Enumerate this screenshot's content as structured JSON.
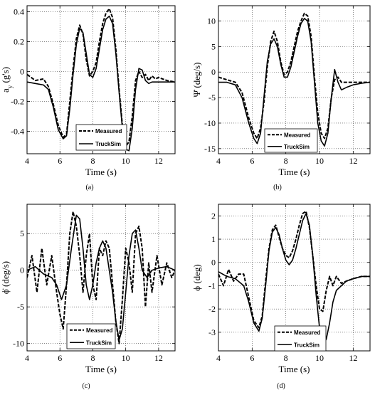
{
  "chart_data": [
    {
      "type": "line",
      "caption": "(a)",
      "ylabel_main": "a",
      "ylabel_sub": "y",
      "ylabel_rest": " (g's)",
      "xlabel": "Time (s)",
      "xlim": [
        4,
        13
      ],
      "ylim": [
        -0.55,
        0.44
      ],
      "xticks": [
        4,
        6,
        8,
        10,
        12
      ],
      "yticks": [
        -0.4,
        -0.2,
        0,
        0.2,
        0.4
      ],
      "ytick_labels": [
        "-0.4",
        "-0.2",
        "0",
        "0.2",
        "0.4"
      ],
      "grid": true,
      "legend": {
        "position": "bottom-center",
        "entries": [
          "Measured",
          "TruckSim"
        ]
      },
      "series": [
        {
          "name": "Measured",
          "style": "dashed",
          "x": [
            4,
            4.5,
            5,
            5.3,
            5.6,
            5.9,
            6.2,
            6.4,
            6.6,
            6.8,
            7.0,
            7.2,
            7.4,
            7.6,
            7.8,
            8.0,
            8.2,
            8.4,
            8.6,
            8.8,
            9.0,
            9.2,
            9.4,
            9.6,
            9.8,
            10.0,
            10.2,
            10.4,
            10.6,
            10.8,
            11.0,
            11.2,
            11.4,
            11.6,
            11.8,
            12.0,
            12.5,
            13
          ],
          "y": [
            -0.02,
            -0.06,
            -0.05,
            -0.1,
            -0.22,
            -0.36,
            -0.44,
            -0.42,
            -0.2,
            0.02,
            0.22,
            0.31,
            0.25,
            0.08,
            -0.03,
            0.0,
            0.06,
            0.2,
            0.32,
            0.39,
            0.42,
            0.36,
            0.15,
            -0.12,
            -0.36,
            -0.5,
            -0.47,
            -0.3,
            -0.06,
            0.0,
            -0.04,
            -0.02,
            -0.06,
            -0.03,
            -0.05,
            -0.04,
            -0.06,
            -0.07
          ]
        },
        {
          "name": "TruckSim",
          "style": "solid",
          "x": [
            4,
            4.5,
            5,
            5.3,
            5.6,
            5.9,
            6.2,
            6.4,
            6.6,
            6.8,
            7.0,
            7.2,
            7.4,
            7.6,
            7.8,
            8.0,
            8.2,
            8.4,
            8.6,
            8.8,
            9.0,
            9.2,
            9.4,
            9.6,
            9.8,
            10.0,
            10.2,
            10.4,
            10.6,
            10.8,
            11.0,
            11.2,
            11.4,
            11.6,
            11.8,
            12.0,
            12.5,
            13
          ],
          "y": [
            -0.07,
            -0.08,
            -0.09,
            -0.12,
            -0.24,
            -0.39,
            -0.45,
            -0.43,
            -0.25,
            -0.02,
            0.18,
            0.29,
            0.26,
            0.12,
            -0.02,
            -0.04,
            0.02,
            0.15,
            0.28,
            0.35,
            0.37,
            0.32,
            0.12,
            -0.14,
            -0.38,
            -0.52,
            -0.53,
            -0.38,
            -0.12,
            0.02,
            0.01,
            -0.06,
            -0.08,
            -0.07,
            -0.07,
            -0.07,
            -0.07,
            -0.07
          ]
        }
      ]
    },
    {
      "type": "line",
      "caption": "(b)",
      "ylabel_main": "Ψ̇",
      "ylabel_sub": "",
      "ylabel_rest": " (deg/s)",
      "xlabel": "Time (s)",
      "xlim": [
        4,
        13
      ],
      "ylim": [
        -16,
        13
      ],
      "xticks": [
        4,
        6,
        8,
        10,
        12
      ],
      "yticks": [
        -15,
        -10,
        -5,
        0,
        5,
        10
      ],
      "ytick_labels": [
        "-15",
        "-10",
        "-5",
        "0",
        "5",
        "10"
      ],
      "grid": true,
      "legend": {
        "position": "bottom-center",
        "entries": [
          "Measured",
          "TruckSim"
        ]
      },
      "series": [
        {
          "name": "Measured",
          "style": "dashed",
          "x": [
            4,
            4.5,
            5,
            5.4,
            5.8,
            6.1,
            6.3,
            6.5,
            6.7,
            6.9,
            7.1,
            7.3,
            7.5,
            7.7,
            7.9,
            8.1,
            8.3,
            8.5,
            8.7,
            8.9,
            9.1,
            9.3,
            9.5,
            9.7,
            9.9,
            10.1,
            10.3,
            10.5,
            10.7,
            10.9,
            11.1,
            11.3,
            11.6,
            12,
            12.5,
            13
          ],
          "y": [
            -1,
            -1.5,
            -2,
            -4,
            -9,
            -12,
            -13,
            -11,
            -6,
            1,
            6,
            8,
            6,
            2,
            -0.5,
            0,
            2,
            5,
            8,
            10,
            11.5,
            11,
            7,
            -1,
            -8,
            -12,
            -13,
            -11,
            -5,
            -1.5,
            -1,
            -2,
            -2,
            -2,
            -2,
            -2
          ]
        },
        {
          "name": "TruckSim",
          "style": "solid",
          "x": [
            4,
            4.5,
            5,
            5.4,
            5.8,
            6.1,
            6.3,
            6.5,
            6.7,
            6.9,
            7.1,
            7.3,
            7.5,
            7.7,
            7.9,
            8.1,
            8.3,
            8.5,
            8.7,
            8.9,
            9.1,
            9.3,
            9.5,
            9.7,
            9.9,
            10.1,
            10.3,
            10.5,
            10.7,
            10.9,
            11.1,
            11.3,
            11.6,
            12,
            12.5,
            13
          ],
          "y": [
            -2,
            -2,
            -2.5,
            -5,
            -10,
            -13,
            -14,
            -12,
            -5,
            2,
            5.5,
            6.5,
            5,
            1.5,
            -1,
            -1,
            1,
            4,
            7,
            9.5,
            10.5,
            10,
            6,
            -2,
            -10,
            -13.5,
            -14.5,
            -12,
            -5,
            0.5,
            -2,
            -3.5,
            -3,
            -2.5,
            -2.2,
            -2
          ]
        }
      ]
    },
    {
      "type": "line",
      "caption": "(c)",
      "ylabel_main": "ϕ̇",
      "ylabel_sub": "",
      "ylabel_rest": " (deg/s)",
      "xlabel": "Time (s)",
      "xlim": [
        4,
        13
      ],
      "ylim": [
        -11,
        9
      ],
      "xticks": [
        4,
        6,
        8,
        10,
        12
      ],
      "yticks": [
        -10,
        -5,
        0,
        5
      ],
      "ytick_labels": [
        "-10",
        "-5",
        "0",
        "5"
      ],
      "grid": true,
      "legend": {
        "position": "bottom-center",
        "entries": [
          "Measured",
          "TruckSim"
        ]
      },
      "series": [
        {
          "name": "Measured",
          "style": "dashed",
          "x": [
            4,
            4.3,
            4.6,
            4.9,
            5.2,
            5.5,
            5.8,
            6.0,
            6.2,
            6.4,
            6.6,
            6.8,
            7.0,
            7.2,
            7.4,
            7.6,
            7.8,
            8.0,
            8.2,
            8.4,
            8.6,
            8.8,
            9.0,
            9.2,
            9.4,
            9.6,
            9.8,
            10.0,
            10.2,
            10.4,
            10.6,
            10.8,
            11.0,
            11.2,
            11.4,
            11.6,
            11.9,
            12.2,
            12.5,
            12.8,
            13
          ],
          "y": [
            -1,
            2,
            -3,
            3,
            -2,
            2,
            -3,
            -6,
            -8,
            -2,
            5,
            8,
            6,
            2,
            -3,
            2,
            5,
            -2,
            -4,
            3,
            2,
            4,
            3,
            -2,
            -7,
            -10,
            -4,
            3,
            1,
            -3,
            5,
            6,
            3,
            -5,
            1,
            -3,
            2,
            -2,
            1,
            -1,
            0
          ]
        },
        {
          "name": "TruckSim",
          "style": "solid",
          "x": [
            4,
            4.5,
            5,
            5.5,
            5.8,
            6.1,
            6.4,
            6.7,
            7.0,
            7.2,
            7.4,
            7.6,
            7.8,
            8.0,
            8.2,
            8.4,
            8.6,
            8.8,
            9.0,
            9.2,
            9.4,
            9.6,
            9.8,
            10.0,
            10.2,
            10.4,
            10.6,
            10.8,
            11.0,
            11.3,
            11.6,
            12,
            12.5,
            13
          ],
          "y": [
            0,
            0.5,
            -0.5,
            -1,
            -2,
            -4,
            -2,
            3,
            7.5,
            7,
            3,
            -2,
            -4,
            -2,
            1,
            3,
            4,
            3,
            0,
            -3,
            -7,
            -9.5,
            -8,
            -3,
            2,
            5,
            5.5,
            3,
            0,
            -1,
            0,
            0.3,
            0.5,
            0
          ]
        }
      ]
    },
    {
      "type": "line",
      "caption": "(d)",
      "ylabel_main": "ϕ",
      "ylabel_sub": "",
      "ylabel_rest": " (deg)",
      "xlabel": "Time (s)",
      "xlim": [
        4,
        13
      ],
      "ylim": [
        -3.8,
        2.5
      ],
      "xticks": [
        4,
        6,
        8,
        10,
        12
      ],
      "yticks": [
        -3,
        -2,
        -1,
        0,
        1,
        2
      ],
      "ytick_labels": [
        "-3",
        "-2",
        "-1",
        "0",
        "1",
        "2"
      ],
      "grid": true,
      "legend": {
        "position": "bottom-right",
        "entries": [
          "Measured",
          "TruckSim"
        ]
      },
      "series": [
        {
          "name": "Measured",
          "style": "dashed",
          "x": [
            4,
            4.3,
            4.6,
            4.9,
            5.2,
            5.5,
            5.8,
            6.1,
            6.4,
            6.6,
            6.8,
            7.0,
            7.2,
            7.4,
            7.6,
            7.8,
            8.0,
            8.2,
            8.4,
            8.6,
            8.8,
            9.0,
            9.2,
            9.4,
            9.6,
            9.8,
            10.0,
            10.2,
            10.4,
            10.6,
            10.8,
            11.0,
            11.3,
            11.6,
            12,
            12.5,
            13
          ],
          "y": [
            -0.5,
            -1,
            -0.3,
            -0.8,
            -0.5,
            -0.5,
            -1.5,
            -2.5,
            -2.8,
            -2.3,
            -0.8,
            0.6,
            1.4,
            1.6,
            1.1,
            0.6,
            0.3,
            0.2,
            0.5,
            1.0,
            1.6,
            2.1,
            2.2,
            1.5,
            0.3,
            -1.0,
            -2.0,
            -2.1,
            -1.2,
            -0.6,
            -1.0,
            -0.6,
            -0.9,
            -0.8,
            -0.7,
            -0.6,
            -0.6
          ]
        },
        {
          "name": "TruckSim",
          "style": "solid",
          "x": [
            4,
            4.5,
            5,
            5.5,
            5.8,
            6.1,
            6.4,
            6.6,
            6.8,
            7.0,
            7.2,
            7.4,
            7.6,
            7.8,
            8.0,
            8.2,
            8.4,
            8.6,
            8.8,
            9.0,
            9.2,
            9.4,
            9.6,
            9.8,
            10.0,
            10.2,
            10.4,
            10.6,
            10.8,
            11.0,
            11.3,
            11.6,
            12,
            12.5,
            13
          ],
          "y": [
            -0.4,
            -0.6,
            -0.7,
            -1.0,
            -1.7,
            -2.6,
            -2.95,
            -2.4,
            -1.0,
            0.5,
            1.3,
            1.5,
            1.2,
            0.6,
            0.1,
            -0.1,
            0.1,
            0.6,
            1.2,
            1.8,
            2.1,
            1.6,
            0.3,
            -1.4,
            -2.8,
            -3.5,
            -3.3,
            -2.6,
            -1.7,
            -1.2,
            -1.0,
            -0.8,
            -0.7,
            -0.6,
            -0.6
          ]
        }
      ]
    }
  ]
}
